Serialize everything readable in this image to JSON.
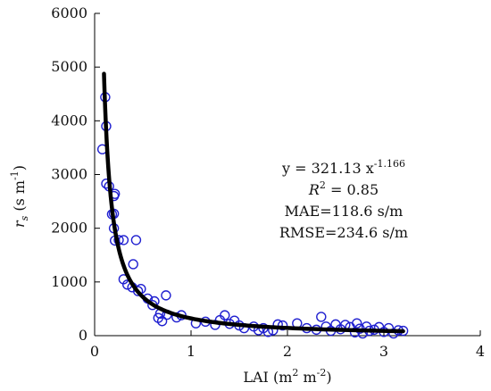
{
  "chart_data": {
    "type": "scatter",
    "xlabel": {
      "base": "LAI (m",
      "sup1": "2",
      "mid": " m",
      "sup2": "-2",
      "end": ")"
    },
    "ylabel": {
      "italic": "r",
      "sub": "s",
      "rest": " (s m",
      "sup": "-1",
      "end": ")"
    },
    "xlim": [
      0,
      4
    ],
    "ylim": [
      0,
      6000
    ],
    "xticks": [
      0,
      1,
      2,
      3,
      4
    ],
    "yticks": [
      0,
      1000,
      2000,
      3000,
      4000,
      5000,
      6000
    ],
    "grid": false,
    "colors": {
      "points": "#2020d0",
      "fit": "#000000",
      "axis": "#000000"
    },
    "fit": {
      "a": 321.13,
      "b": -1.166,
      "x_range": [
        0.097,
        3.2
      ]
    },
    "annotations": {
      "equation": {
        "base": "y = 321.13 x",
        "sup": "-1.166"
      },
      "r2": {
        "italic": "R",
        "sup": "2",
        "rest": " = 0.85"
      },
      "mae": "MAE=118.6 s/m",
      "rmse": "RMSE=234.6 s/m"
    },
    "series": [
      {
        "marker": "open-circle",
        "points": [
          [
            0.08,
            3470
          ],
          [
            0.11,
            4440
          ],
          [
            0.12,
            3900
          ],
          [
            0.12,
            2830
          ],
          [
            0.15,
            2780
          ],
          [
            0.18,
            2260
          ],
          [
            0.2,
            2270
          ],
          [
            0.2,
            2600
          ],
          [
            0.21,
            2640
          ],
          [
            0.2,
            2000
          ],
          [
            0.21,
            1770
          ],
          [
            0.25,
            1780
          ],
          [
            0.3,
            1780
          ],
          [
            0.43,
            1780
          ],
          [
            0.3,
            1050
          ],
          [
            0.34,
            950
          ],
          [
            0.39,
            900
          ],
          [
            0.4,
            1330
          ],
          [
            0.45,
            830
          ],
          [
            0.48,
            870
          ],
          [
            0.55,
            690
          ],
          [
            0.6,
            570
          ],
          [
            0.62,
            640
          ],
          [
            0.66,
            330
          ],
          [
            0.68,
            410
          ],
          [
            0.7,
            270
          ],
          [
            0.74,
            750
          ],
          [
            0.75,
            390
          ],
          [
            0.85,
            340
          ],
          [
            0.9,
            380
          ],
          [
            1.05,
            230
          ],
          [
            1.15,
            260
          ],
          [
            1.25,
            200
          ],
          [
            1.3,
            290
          ],
          [
            1.35,
            380
          ],
          [
            1.4,
            220
          ],
          [
            1.45,
            280
          ],
          [
            1.5,
            190
          ],
          [
            1.55,
            140
          ],
          [
            1.65,
            170
          ],
          [
            1.7,
            100
          ],
          [
            1.75,
            140
          ],
          [
            1.8,
            70
          ],
          [
            1.85,
            100
          ],
          [
            1.9,
            210
          ],
          [
            1.95,
            190
          ],
          [
            2.1,
            230
          ],
          [
            2.2,
            140
          ],
          [
            2.3,
            110
          ],
          [
            2.35,
            350
          ],
          [
            2.4,
            170
          ],
          [
            2.45,
            90
          ],
          [
            2.5,
            210
          ],
          [
            2.55,
            120
          ],
          [
            2.6,
            200
          ],
          [
            2.65,
            160
          ],
          [
            2.7,
            60
          ],
          [
            2.72,
            230
          ],
          [
            2.75,
            130
          ],
          [
            2.78,
            40
          ],
          [
            2.82,
            170
          ],
          [
            2.85,
            90
          ],
          [
            2.9,
            110
          ],
          [
            2.95,
            160
          ],
          [
            3.0,
            70
          ],
          [
            3.05,
            140
          ],
          [
            3.1,
            40
          ],
          [
            3.15,
            100
          ],
          [
            3.2,
            90
          ]
        ]
      }
    ]
  }
}
